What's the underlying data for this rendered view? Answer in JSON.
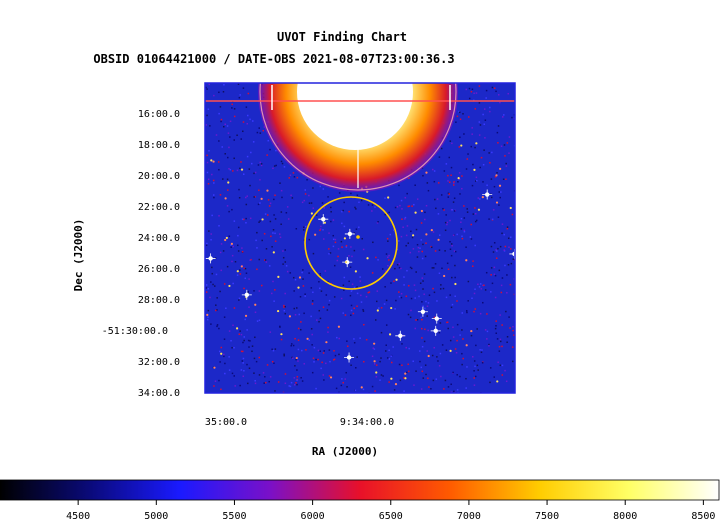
{
  "chart_data": {
    "type": "heatmap",
    "title": "UVOT Finding Chart",
    "subtitle": "OBSID 01064421000 / DATE-OBS 2021-08-07T23:00:36.3",
    "xlabel": "RA (J2000)",
    "ylabel": "Dec (J2000)",
    "x_ticks": [
      "35:00.0",
      "9:34:00.0"
    ],
    "y_ticks": [
      "16:00.0",
      "18:00.0",
      "20:00.0",
      "22:00.0",
      "24:00.0",
      "26:00.0",
      "28:00.0",
      "-51:30:00.0",
      "32:00.0",
      "34:00.0"
    ],
    "colorbar": {
      "ticks": [
        4500,
        5000,
        5500,
        6000,
        6500,
        7000,
        7500,
        8000,
        8500
      ],
      "range": [
        4000,
        8600
      ],
      "colors": [
        "#000000",
        "#0a0a7a",
        "#1a1aff",
        "#7a10c8",
        "#e8102a",
        "#ff5a00",
        "#ffcc00",
        "#ffff66",
        "#ffffff"
      ]
    },
    "colors": {
      "frame": "#2222dd",
      "region_circle": "#ffcc00",
      "background_field": "#1c28c8"
    }
  }
}
